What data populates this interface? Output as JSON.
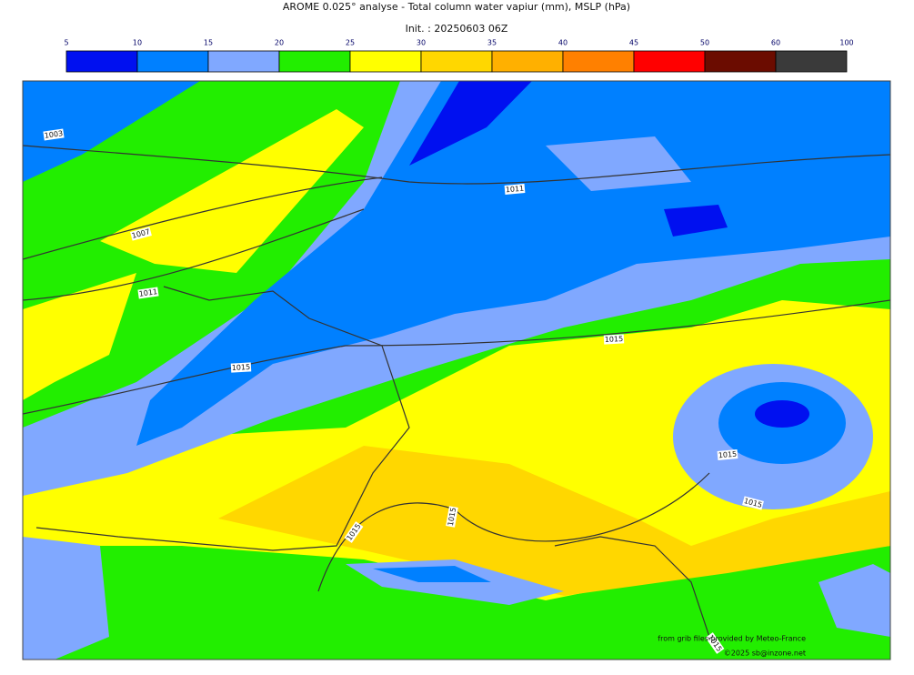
{
  "header": {
    "title": "AROME 0.025° analyse - Total column water vapiur (mm), MSLP (hPa)",
    "subtitle": "Init. : 20250603 06Z"
  },
  "colorbar": {
    "ticks": [
      5,
      10,
      15,
      20,
      25,
      30,
      35,
      40,
      45,
      50,
      60,
      100
    ],
    "colors": [
      "#0010f0",
      "#0080ff",
      "#80a8ff",
      "#22ee00",
      "#ffff00",
      "#ffd700",
      "#ffb000",
      "#ff8000",
      "#ff0000",
      "#6b0c00",
      "#3a3a3a"
    ]
  },
  "isobar_labels": [
    1003,
    1007,
    1011,
    1011,
    1015,
    1015,
    1015,
    1015,
    1015,
    1015,
    1015
  ],
  "credits": {
    "source": "from grib files provided by Meteo-France",
    "copyright": "©2025 sb@inzone.net"
  }
}
